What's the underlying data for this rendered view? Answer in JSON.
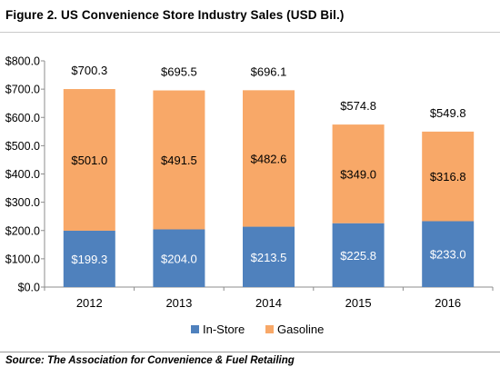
{
  "figure": {
    "title": "Figure 2. US Convenience Store Industry Sales (USD Bil.)",
    "source": "Source: The Association for Convenience & Fuel Retailing"
  },
  "chart_data": {
    "type": "bar",
    "stacked": true,
    "categories": [
      "2012",
      "2013",
      "2014",
      "2015",
      "2016"
    ],
    "series": [
      {
        "name": "In-Store",
        "color": "#4f81bd",
        "values": [
          199.3,
          204.0,
          213.5,
          225.8,
          233.0
        ],
        "labels": [
          "$199.3",
          "$204.0",
          "$213.5",
          "$225.8",
          "$233.0"
        ]
      },
      {
        "name": "Gasoline",
        "color": "#f8a868",
        "values": [
          501.0,
          491.5,
          482.6,
          349.0,
          316.8
        ],
        "labels": [
          "$501.0",
          "$491.5",
          "$482.6",
          "$349.0",
          "$316.8"
        ]
      }
    ],
    "totals": [
      700.3,
      695.5,
      696.1,
      574.8,
      549.8
    ],
    "total_labels": [
      "$700.3",
      "$695.5",
      "$696.1",
      "$574.8",
      "$549.8"
    ],
    "ylim": [
      0,
      800
    ],
    "yticks": [
      0,
      100,
      200,
      300,
      400,
      500,
      600,
      700,
      800
    ],
    "ytick_labels": [
      "$0.0",
      "$100.0",
      "$200.0",
      "$300.0",
      "$400.0",
      "$500.0",
      "$600.0",
      "$700.0",
      "$800.0"
    ],
    "grid": false,
    "legend": "bottom"
  }
}
